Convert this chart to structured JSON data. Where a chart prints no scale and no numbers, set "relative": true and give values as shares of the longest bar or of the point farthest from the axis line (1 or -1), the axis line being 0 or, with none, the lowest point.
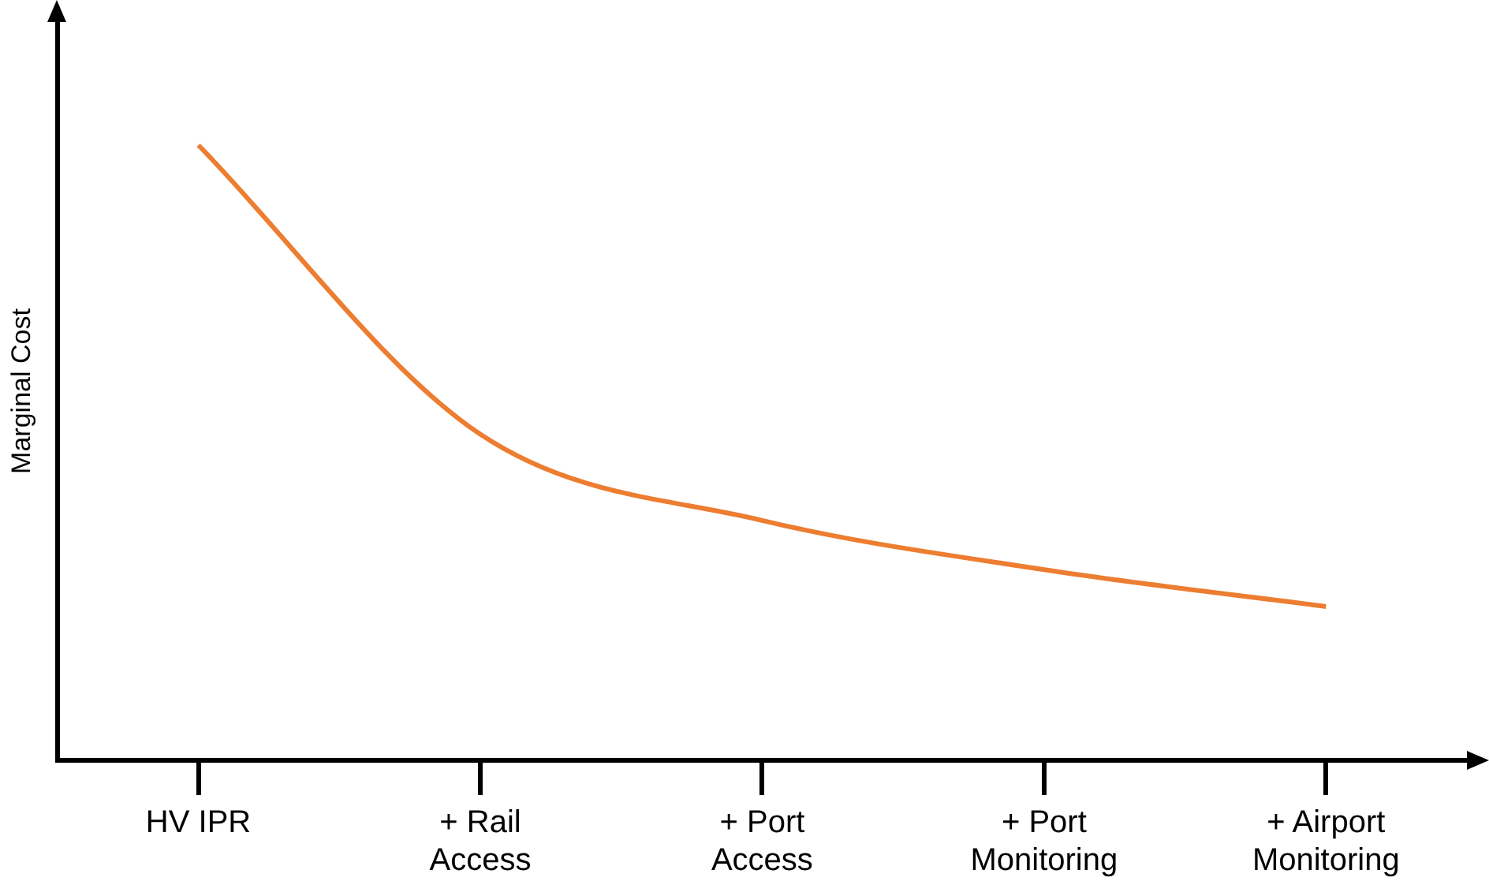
{
  "chart_data": {
    "type": "line",
    "relative": true,
    "ylabel": "Marginal Cost",
    "categories": [
      "HV IPR",
      "+ Rail Access",
      "+ Port Access",
      "+ Port Monitoring",
      "+ Airport Monitoring"
    ],
    "series": [
      {
        "color": "#ed7d31",
        "values": [
          1,
          0.53,
          0.39,
          0.31,
          0.25
        ]
      }
    ],
    "grid": false,
    "legend": false,
    "marker": "none",
    "line_style": "solid"
  }
}
